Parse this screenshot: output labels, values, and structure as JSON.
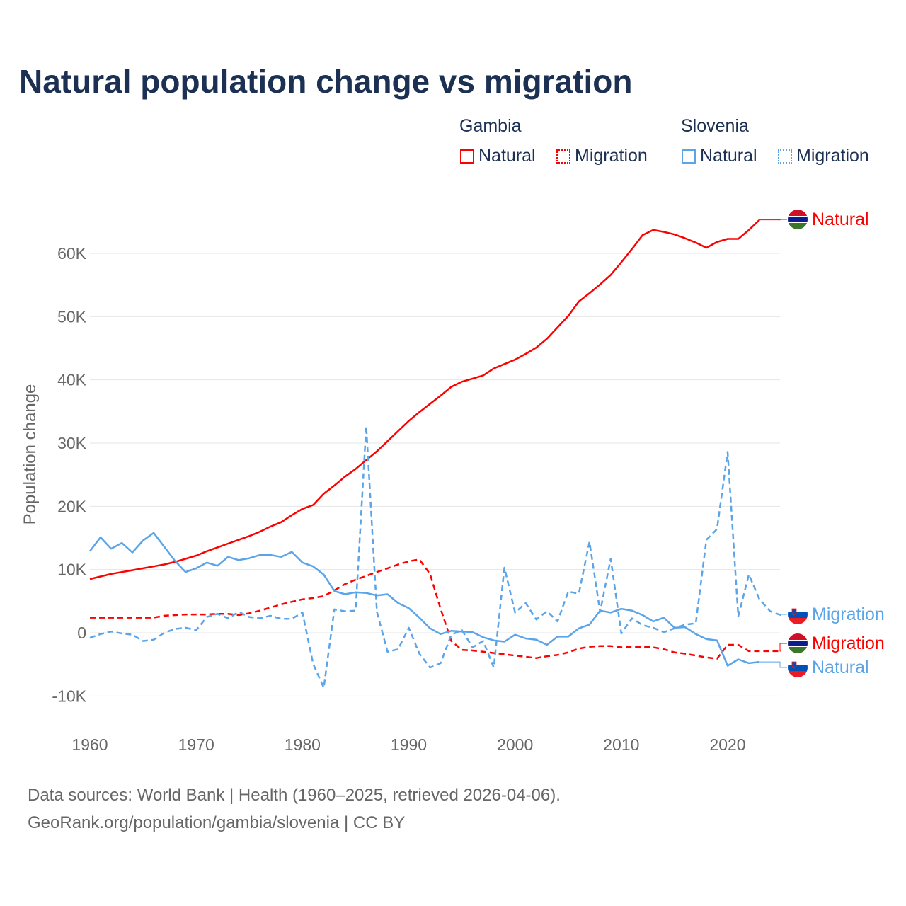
{
  "title": "Natural population change vs migration",
  "legend": {
    "groups": [
      {
        "name": "Gambia",
        "items": [
          "Natural",
          "Migration"
        ]
      },
      {
        "name": "Slovenia",
        "items": [
          "Natural",
          "Migration"
        ]
      }
    ]
  },
  "footer": {
    "line1": "Data sources: World Bank | Health (1960–2025, retrieved 2026-04-06).",
    "line2": "GeoRank.org/population/gambia/slovenia | CC BY"
  },
  "colors": {
    "gambia": "#ff0000",
    "slovenia": "#5ba4e8",
    "title": "#1b3052"
  },
  "chart_data": {
    "type": "line",
    "title": "Natural population change vs migration",
    "xlabel": "",
    "ylabel": "Population change",
    "xlim": [
      1960,
      2025
    ],
    "ylim": [
      -10000,
      65000
    ],
    "xticks": [
      1960,
      1970,
      1980,
      1990,
      2000,
      2010,
      2020
    ],
    "xtick_labels": [
      "1960",
      "1970",
      "1980",
      "1990",
      "2000",
      "2010",
      "2020"
    ],
    "yticks": [
      -10000,
      0,
      10000,
      20000,
      30000,
      40000,
      50000,
      60000
    ],
    "ytick_labels": [
      "-10K",
      "0",
      "10K",
      "20K",
      "30K",
      "40K",
      "50K",
      "60K"
    ],
    "grid": true,
    "legend_position": "top-right",
    "end_labels": [
      "Natural",
      "Migration",
      "Migration",
      "Natural"
    ],
    "series": [
      {
        "name": "Gambia Natural",
        "country": "Gambia",
        "kind": "Natural",
        "dash": false,
        "start": 1960,
        "values": [
          8500,
          8900,
          9300,
          9600,
          9900,
          10200,
          10500,
          10800,
          11200,
          11700,
          12200,
          12900,
          13500,
          14100,
          14700,
          15300,
          16000,
          16800,
          17500,
          18600,
          19600,
          20200,
          22000,
          23300,
          24700,
          25900,
          27300,
          28700,
          30300,
          31900,
          33500,
          34900,
          36200,
          37500,
          38900,
          39700,
          40200,
          40700,
          41800,
          42500,
          43200,
          44100,
          45100,
          46500,
          48300,
          50100,
          52400,
          53700,
          55100,
          56600,
          58600,
          60700,
          62900,
          63700,
          63400,
          63000,
          62400,
          61700,
          60900,
          61800,
          62300,
          62300,
          63700,
          65300
        ]
      },
      {
        "name": "Gambia Migration",
        "country": "Gambia",
        "kind": "Migration",
        "dash": true,
        "start": 1960,
        "values": [
          2400,
          2400,
          2400,
          2400,
          2400,
          2400,
          2400,
          2700,
          2800,
          2900,
          2900,
          2900,
          3000,
          3000,
          2800,
          3100,
          3500,
          4000,
          4500,
          4900,
          5300,
          5500,
          5800,
          6700,
          7700,
          8400,
          9000,
          9600,
          10200,
          10800,
          11300,
          11600,
          9300,
          3800,
          -1300,
          -2700,
          -2800,
          -3000,
          -3200,
          -3400,
          -3600,
          -3800,
          -4000,
          -3700,
          -3500,
          -3100,
          -2500,
          -2200,
          -2100,
          -2100,
          -2300,
          -2200,
          -2200,
          -2300,
          -2600,
          -3100,
          -3300,
          -3600,
          -3900,
          -4100,
          -1900,
          -1900,
          -2900,
          -2900,
          -2900,
          -2900
        ]
      },
      {
        "name": "Slovenia Natural",
        "country": "Slovenia",
        "kind": "Natural",
        "dash": false,
        "start": 1960,
        "values": [
          12900,
          15100,
          13300,
          14200,
          12700,
          14600,
          15800,
          13600,
          11400,
          9600,
          10200,
          11100,
          10600,
          12000,
          11500,
          11800,
          12300,
          12300,
          12000,
          12800,
          11100,
          10500,
          9200,
          6600,
          6100,
          6400,
          6300,
          5900,
          6100,
          4700,
          3900,
          2400,
          700,
          -200,
          300,
          200,
          100,
          -700,
          -1200,
          -1400,
          -300,
          -900,
          -1100,
          -1900,
          -600,
          -600,
          700,
          1300,
          3500,
          3200,
          3800,
          3500,
          2800,
          1800,
          2400,
          800,
          900,
          -200,
          -1000,
          -1200,
          -5200,
          -4200,
          -4800,
          -4600
        ]
      },
      {
        "name": "Slovenia Migration",
        "country": "Slovenia",
        "kind": "Migration",
        "dash": true,
        "start": 1960,
        "values": [
          -800,
          -200,
          200,
          -100,
          -300,
          -1300,
          -1100,
          0,
          600,
          800,
          400,
          2500,
          3000,
          2300,
          3300,
          2500,
          2300,
          2700,
          2200,
          2200,
          3200,
          -4900,
          -8700,
          3700,
          3400,
          3500,
          32700,
          3300,
          -3000,
          -2600,
          800,
          -3300,
          -5500,
          -4800,
          -300,
          400,
          -2300,
          -1300,
          -5500,
          10300,
          3200,
          4700,
          2100,
          3400,
          1800,
          6500,
          6200,
          14400,
          3300,
          11700,
          -100,
          2300,
          1200,
          800,
          100,
          700,
          1300,
          1500,
          14700,
          16400,
          28600,
          2600,
          9200,
          5300,
          3400,
          2800
        ]
      }
    ]
  }
}
